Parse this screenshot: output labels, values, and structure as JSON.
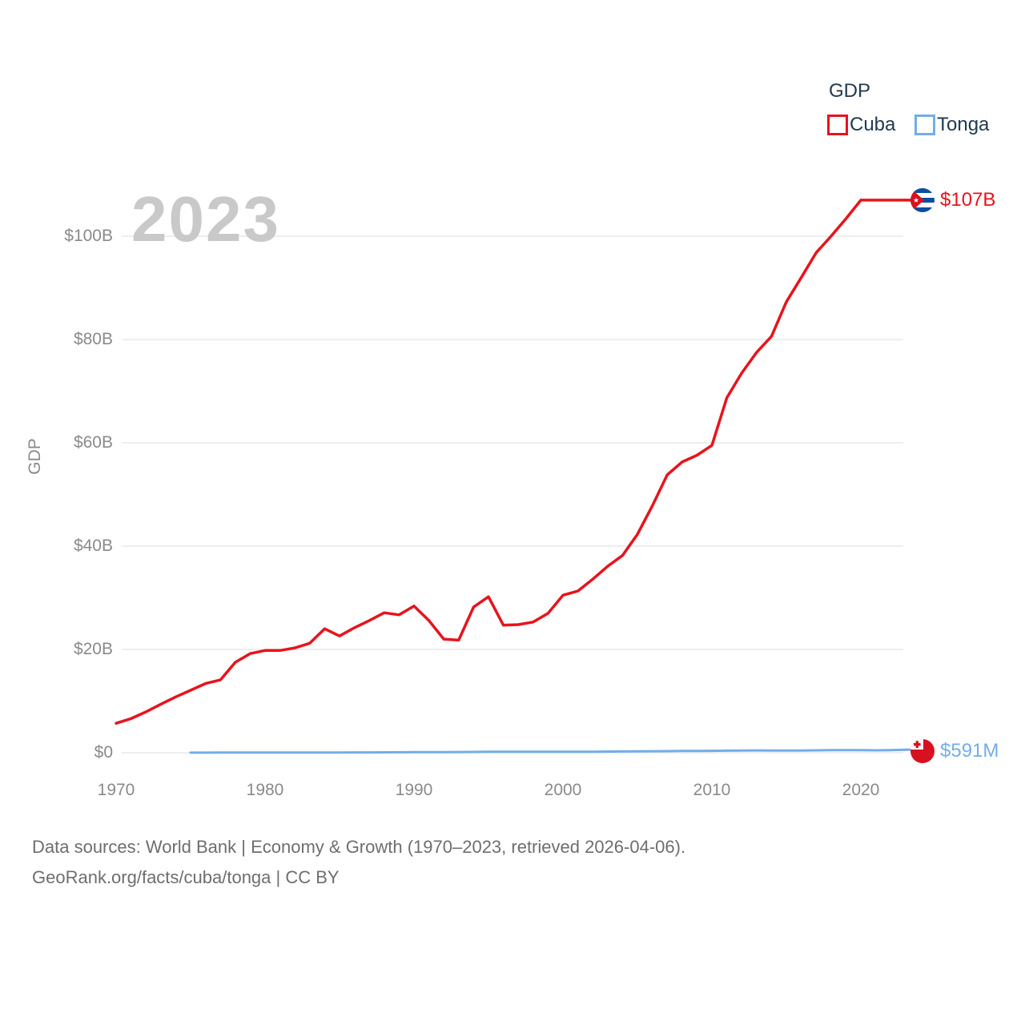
{
  "watermark_year": "2023",
  "legend": {
    "title": "GDP",
    "items": [
      {
        "label": "Cuba",
        "color": "#e8131c"
      },
      {
        "label": "Tonga",
        "color": "#73ade9"
      }
    ]
  },
  "axes": {
    "y": {
      "title": "GDP",
      "tick_labels": [
        "$100B",
        "$80B",
        "$60B",
        "$40B",
        "$20B",
        "$0"
      ]
    },
    "x": {
      "tick_labels": [
        "1970",
        "1980",
        "1990",
        "2000",
        "2010",
        "2020"
      ]
    }
  },
  "end_labels": {
    "cuba": {
      "text": "$107B",
      "flag": "cuba-flag-icon"
    },
    "tonga": {
      "text": "$591M",
      "flag": "tonga-flag-icon"
    }
  },
  "footer": {
    "line1": "Data sources: World Bank | Economy & Growth (1970–2023, retrieved 2026-04-06).",
    "line2": "GeoRank.org/facts/cuba/tonga | CC BY"
  },
  "chart_data": {
    "type": "line",
    "title": "GDP",
    "ylabel": "GDP",
    "xlabel": "",
    "x_range": [
      1970,
      2023
    ],
    "ylim": [
      0,
      110
    ],
    "y_gridlines_at": [
      0,
      20,
      40,
      60,
      80,
      100
    ],
    "x_ticks": [
      1970,
      1980,
      1990,
      2000,
      2010,
      2020
    ],
    "grid": true,
    "legend_position": "top-right",
    "unit": "USD billions",
    "x": [
      1970,
      1971,
      1972,
      1973,
      1974,
      1975,
      1976,
      1977,
      1978,
      1979,
      1980,
      1981,
      1982,
      1983,
      1984,
      1985,
      1986,
      1987,
      1988,
      1989,
      1990,
      1991,
      1992,
      1993,
      1994,
      1995,
      1996,
      1997,
      1998,
      1999,
      2000,
      2001,
      2002,
      2003,
      2004,
      2005,
      2006,
      2007,
      2008,
      2009,
      2010,
      2011,
      2012,
      2013,
      2014,
      2015,
      2016,
      2017,
      2018,
      2019,
      2020,
      2021,
      2022,
      2023
    ],
    "series": [
      {
        "name": "Cuba",
        "color": "#e8131c",
        "stroke_width": 3.5,
        "end_value_label": "$107B",
        "values": [
          5.7,
          6.6,
          7.9,
          9.4,
          10.8,
          12.1,
          13.4,
          14.1,
          17.5,
          19.2,
          19.8,
          19.8,
          20.3,
          21.2,
          24.0,
          22.6,
          24.2,
          25.6,
          27.1,
          26.7,
          28.4,
          25.6,
          22.0,
          21.8,
          28.2,
          30.2,
          24.7,
          24.8,
          25.3,
          27.0,
          30.5,
          31.3,
          33.6,
          36.1,
          38.2,
          42.3,
          47.8,
          53.8,
          56.3,
          57.6,
          59.5,
          68.7,
          73.5,
          77.5,
          80.6,
          87.3,
          92.0,
          96.8,
          100.0,
          103.4,
          107.0,
          107.0,
          107.0,
          107.0
        ]
      },
      {
        "name": "Tonga",
        "color": "#73ade9",
        "stroke_width": 3,
        "end_value_label": "$591M",
        "values": [
          null,
          null,
          null,
          null,
          null,
          0.02,
          0.023,
          0.026,
          0.03,
          0.034,
          0.036,
          0.04,
          0.044,
          0.048,
          0.052,
          0.05,
          0.055,
          0.065,
          0.08,
          0.095,
          0.114,
          0.12,
          0.13,
          0.14,
          0.155,
          0.18,
          0.185,
          0.19,
          0.185,
          0.182,
          0.19,
          0.195,
          0.205,
          0.225,
          0.255,
          0.27,
          0.29,
          0.31,
          0.345,
          0.36,
          0.37,
          0.41,
          0.44,
          0.445,
          0.44,
          0.435,
          0.44,
          0.46,
          0.49,
          0.51,
          0.49,
          0.47,
          0.5,
          0.591
        ]
      }
    ]
  }
}
